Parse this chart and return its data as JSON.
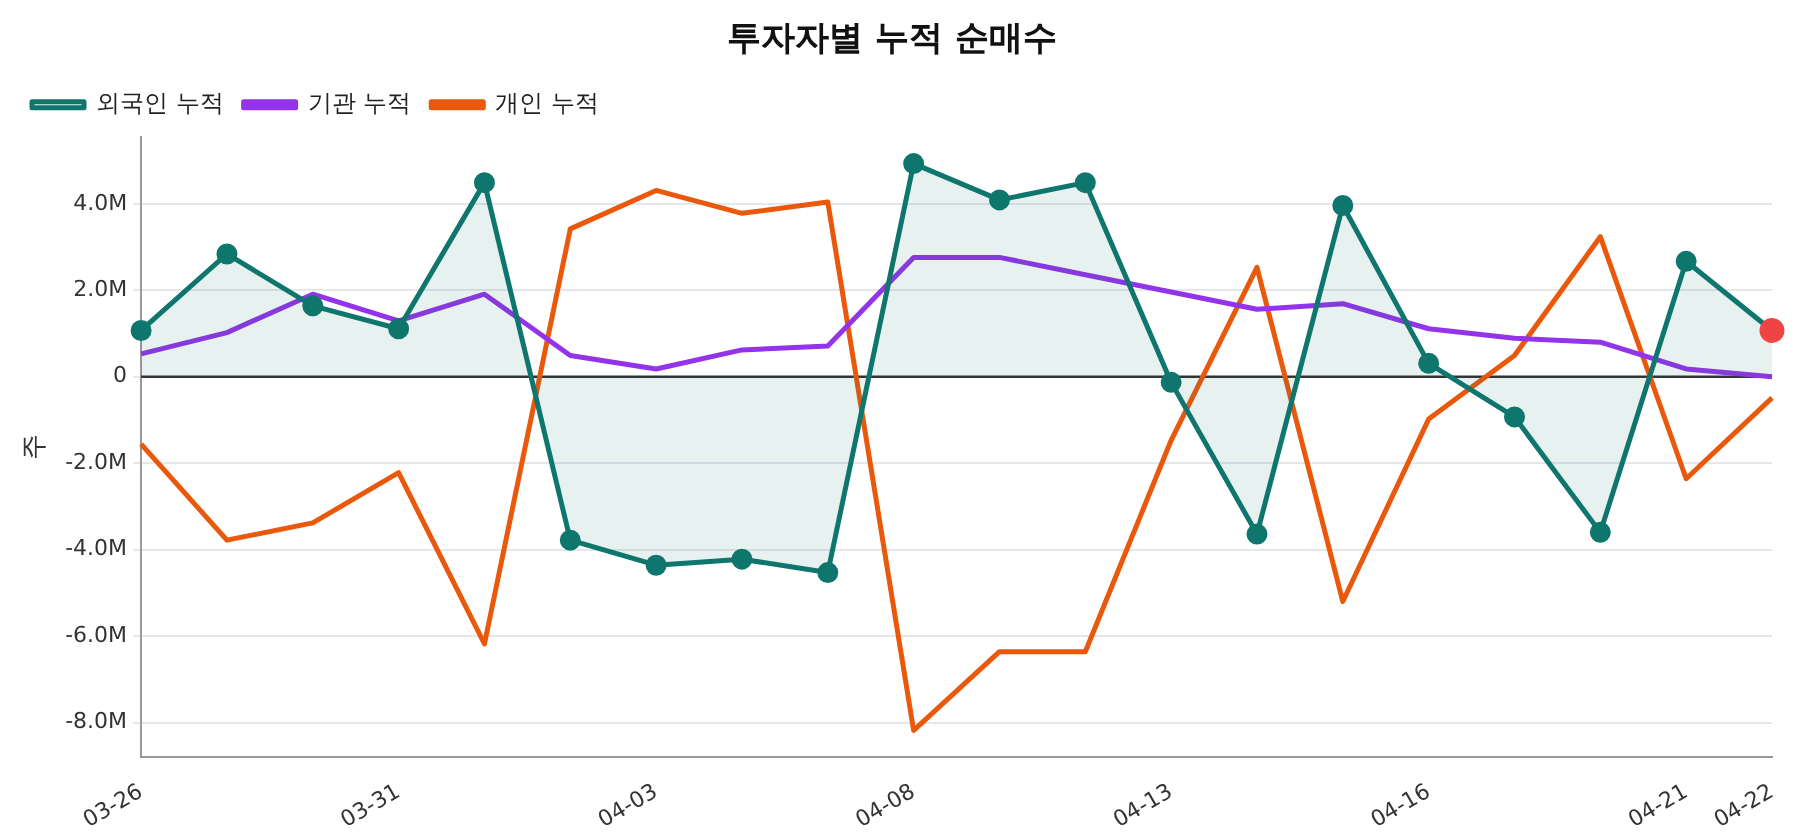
{
  "chart_data": {
    "type": "line",
    "title": "투자자별 누적 순매수",
    "ylabel": "주",
    "categories": [
      "03-26",
      null,
      null,
      "03-31",
      null,
      null,
      "04-03",
      null,
      null,
      "04-08",
      null,
      null,
      "04-13",
      null,
      null,
      "04-16",
      null,
      null,
      "04-21",
      "04-22"
    ],
    "series": [
      {
        "name": "외국인 누적",
        "type": "area",
        "marker": "circle",
        "color": "#0f766e",
        "values": [
          1.07,
          2.84,
          1.64,
          1.11,
          4.49,
          -3.78,
          -4.36,
          -4.22,
          -4.53,
          4.93,
          4.09,
          4.49,
          -0.13,
          -3.64,
          3.96,
          0.31,
          -0.93,
          -3.6,
          2.67,
          1.07
        ]
      },
      {
        "name": "기관 누적",
        "marker": "none",
        "color": "#9333ea",
        "values": [
          0.53,
          1.02,
          1.91,
          1.29,
          1.91,
          0.49,
          0.18,
          0.62,
          0.71,
          2.76,
          2.76,
          2.36,
          1.96,
          1.56,
          1.69,
          1.11,
          0.89,
          0.8,
          0.18,
          0.0
        ]
      },
      {
        "name": "개인 누적",
        "marker": "none",
        "color": "#ea580c",
        "values": [
          -1.56,
          -3.78,
          -3.38,
          -2.22,
          -6.18,
          3.42,
          4.31,
          3.78,
          4.04,
          -8.18,
          -6.36,
          -6.36,
          -1.47,
          2.53,
          -5.2,
          -0.98,
          0.49,
          3.24,
          -2.36,
          -0.49
        ]
      },
      {
        "type": "scatter",
        "color": "#ef4444",
        "x": [
          "04-22"
        ],
        "values": [
          1.07
        ]
      }
    ],
    "ylim": [
      -8.8,
      5.55
    ],
    "yticks": [
      {
        "value": -8,
        "label": "-8.0M"
      },
      {
        "value": -6,
        "label": "-6.0M"
      },
      {
        "value": -4,
        "label": "-4.0M"
      },
      {
        "value": -2,
        "label": "-2.0M"
      },
      {
        "value": 0,
        "label": "0"
      },
      {
        "value": 2,
        "label": "2.0M"
      },
      {
        "value": 4,
        "label": "4.0M"
      }
    ],
    "grid": "y",
    "legend": "top left",
    "ref_lines": [
      {
        "axis": "y",
        "value": 0,
        "color": "#333333"
      }
    ]
  }
}
